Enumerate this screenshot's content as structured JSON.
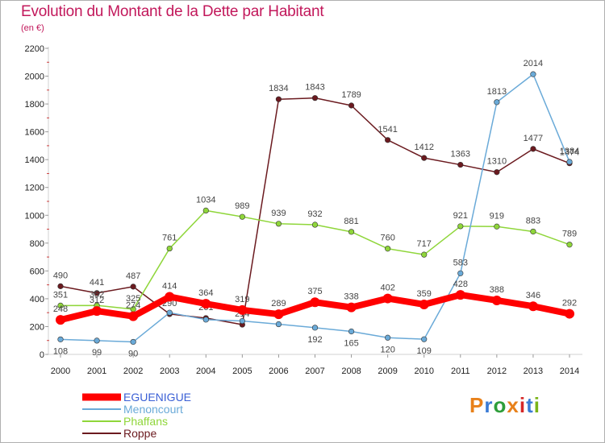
{
  "title": "Evolution du Montant de la Dette par Habitant",
  "subtitle": "(en €)",
  "logo": {
    "text": "Proxiti",
    "colors": [
      "#e8811a",
      "#3a7bd5",
      "#2e9e3a",
      "#e8811a",
      "#d62828",
      "#3a7bd5",
      "#7ab317"
    ]
  },
  "chart_data": {
    "type": "line",
    "x": [
      2000,
      2001,
      2002,
      2003,
      2004,
      2005,
      2006,
      2007,
      2008,
      2009,
      2010,
      2011,
      2012,
      2013,
      2014
    ],
    "ylim": [
      0,
      2200
    ],
    "yticks": [
      0,
      200,
      400,
      600,
      800,
      1000,
      1200,
      1400,
      1600,
      1800,
      2000,
      2200
    ],
    "grid": false,
    "legend_position": "bottom-left",
    "series": [
      {
        "name": "Roppe",
        "color": "#6b1a1f",
        "values": [
          490,
          441,
          487,
          290,
          261,
          214,
          1834,
          1843,
          1789,
          1541,
          1412,
          1363,
          1310,
          1477,
          1374
        ],
        "labels": [
          "490",
          "441",
          "487",
          "290",
          "261",
          "214",
          "1834",
          "1843",
          "1789",
          "1541",
          "1412",
          "1363",
          "1310",
          "1477",
          "1374"
        ]
      },
      {
        "name": "Phaffans",
        "color": "#8fd63a",
        "values": [
          351,
          352,
          325,
          761,
          1034,
          989,
          939,
          932,
          881,
          760,
          717,
          921,
          919,
          883,
          789
        ],
        "labels": [
          "351",
          "352",
          "325",
          "761",
          "1034",
          "989",
          "939",
          "932",
          "881",
          "760",
          "717",
          "921",
          "919",
          "883",
          "789"
        ]
      },
      {
        "name": "Menoncourt",
        "color": "#6aaad8",
        "values": [
          108,
          99,
          90,
          300,
          250,
          240,
          217,
          192,
          165,
          120,
          109,
          583,
          1813,
          2014,
          1384
        ],
        "labels": [
          "108",
          "99",
          "90",
          "",
          "",
          "",
          "",
          "192",
          "165",
          "120",
          "109",
          "583",
          "1813",
          "2014",
          "1384"
        ]
      },
      {
        "name": "EGUENIGUE",
        "color": "#ff0000",
        "values": [
          248,
          312,
          274,
          414,
          364,
          319,
          289,
          375,
          338,
          402,
          359,
          428,
          388,
          346,
          292
        ],
        "labels": [
          "248",
          "312",
          "274",
          "414",
          "364",
          "319",
          "289",
          "375",
          "338",
          "402",
          "359",
          "428",
          "388",
          "346",
          "292"
        ]
      }
    ],
    "legend": [
      "EGUENIGUE",
      "Menoncourt",
      "Phaffans",
      "Roppe"
    ]
  }
}
